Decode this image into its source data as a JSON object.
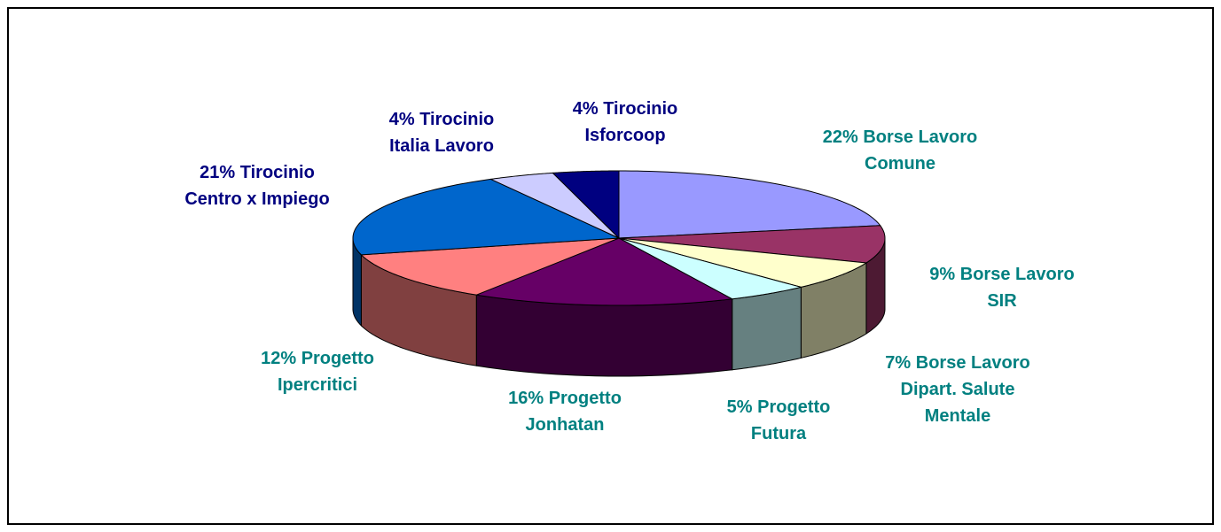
{
  "chart_data": {
    "type": "pie3d",
    "categories": [
      "Borse Lavoro\nComune",
      "Borse Lavoro\nSIR",
      "Borse Lavoro\nDipart. Salute\nMentale",
      "Progetto\nFutura",
      "Progetto\nJonhatan",
      "Progetto\nIpercritici",
      "Tirocinio\nCentro x Impiego",
      "Tirocinio\nItalia Lavoro",
      "Tirocinio\nIsforcoop"
    ],
    "values": [
      22,
      9,
      7,
      5,
      16,
      12,
      21,
      4,
      4
    ],
    "value_labels": [
      "22%",
      "9%",
      "7%",
      "5%",
      "16%",
      "12%",
      "21%",
      "4%",
      "4%"
    ],
    "colors": [
      "#9999ff",
      "#993366",
      "#ffffcc",
      "#ccffff",
      "#660066",
      "#ff8080",
      "#0066cc",
      "#ccccff",
      "#000080"
    ],
    "label_colors": [
      "#008080",
      "#008080",
      "#008080",
      "#008080",
      "#008080",
      "#008080",
      "#000080",
      "#000080",
      "#000080"
    ]
  }
}
